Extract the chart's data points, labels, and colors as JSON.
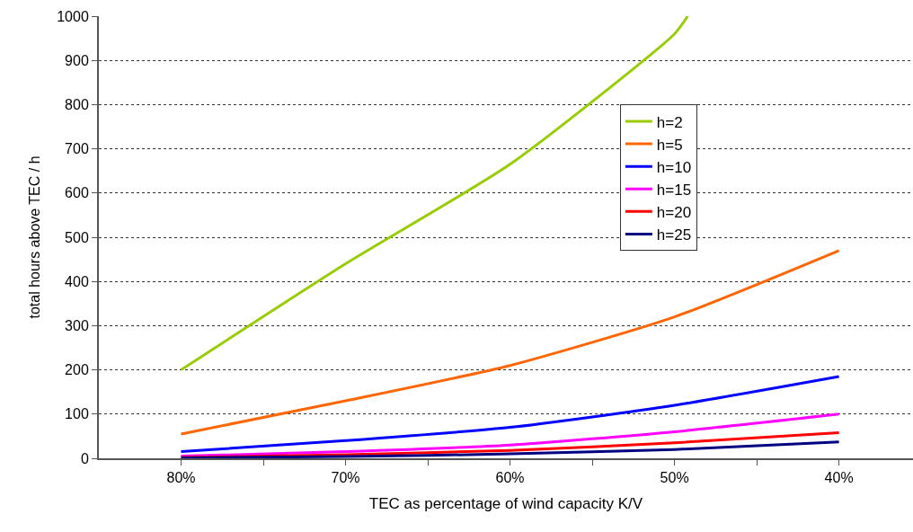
{
  "chart_data": {
    "type": "line",
    "xlabel": "TEC as percentage of wind capacity K/V",
    "ylabel": "total hours above TEC / h",
    "xlim": [
      85,
      35.5
    ],
    "xticks": [
      {
        "value": 80,
        "label": "80%"
      },
      {
        "value": 75,
        "label": null
      },
      {
        "value": 70,
        "label": "70%"
      },
      {
        "value": 65,
        "label": null
      },
      {
        "value": 60,
        "label": "60%"
      },
      {
        "value": 55,
        "label": null
      },
      {
        "value": 50,
        "label": "50%"
      },
      {
        "value": 45,
        "label": null
      },
      {
        "value": 40,
        "label": "40%"
      }
    ],
    "ylim": [
      0,
      1000
    ],
    "yticks": [
      0,
      100,
      200,
      300,
      400,
      500,
      600,
      700,
      800,
      900,
      1000
    ],
    "grid": "y",
    "legend": "top right",
    "marker": "none",
    "line_style": "solid",
    "series": [
      {
        "name": "h=2",
        "color": "#99cc00",
        "x": [
          80,
          70,
          60,
          50,
          49.2
        ],
        "values": [
          200,
          440,
          665,
          960,
          1000
        ]
      },
      {
        "name": "h=5",
        "color": "#ff6600",
        "x": [
          80,
          70,
          60,
          50,
          40
        ],
        "values": [
          55,
          130,
          210,
          320,
          470
        ]
      },
      {
        "name": "h=10",
        "color": "#0000ff",
        "x": [
          80,
          70,
          60,
          50,
          40
        ],
        "values": [
          15,
          40,
          70,
          120,
          185
        ]
      },
      {
        "name": "h=15",
        "color": "#ff00ff",
        "x": [
          80,
          70,
          60,
          50,
          40
        ],
        "values": [
          5,
          15,
          30,
          60,
          100
        ]
      },
      {
        "name": "h=20",
        "color": "#ff0000",
        "x": [
          80,
          70,
          60,
          50,
          40
        ],
        "values": [
          2,
          8,
          18,
          35,
          58
        ]
      },
      {
        "name": "h=25",
        "color": "#000080",
        "x": [
          80,
          70,
          60,
          50,
          40
        ],
        "values": [
          1,
          4,
          10,
          20,
          37
        ]
      }
    ]
  }
}
